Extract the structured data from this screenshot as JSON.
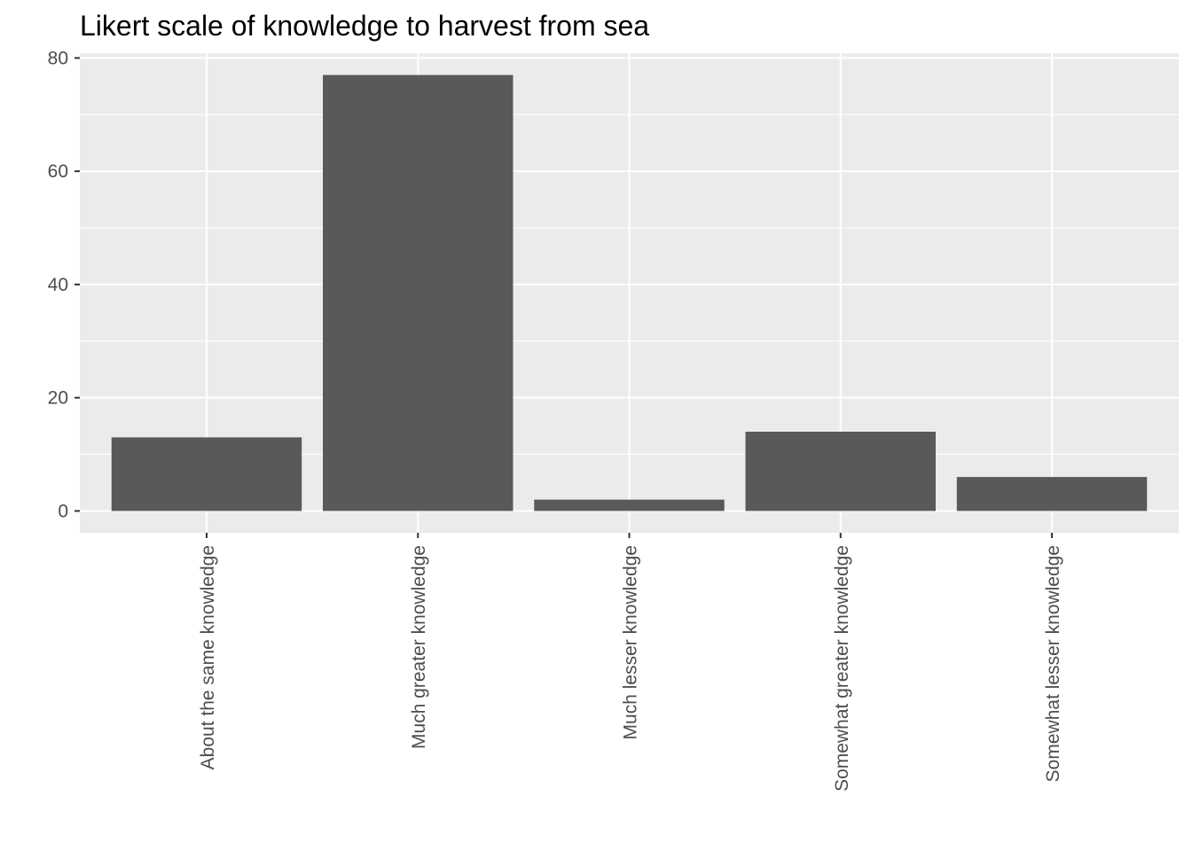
{
  "chart_data": {
    "type": "bar",
    "title": "Likert scale of knowledge to harvest from sea",
    "xlabel": "",
    "ylabel": "",
    "categories": [
      "About the same knowledge",
      "Much greater knowledge",
      "Much lesser knowledge",
      "Somewhat greater knowledge",
      "Somewhat lesser knowledge"
    ],
    "values": [
      13,
      77,
      2,
      14,
      6
    ],
    "ylim": [
      -3.85,
      80.85
    ],
    "yticks": [
      0,
      20,
      40,
      60,
      80
    ],
    "ytick_labels": [
      "0",
      "20",
      "40",
      "60",
      "80"
    ],
    "grid": true,
    "legend": "none",
    "colors": {
      "bar": "#595959",
      "panel": "#ebebeb",
      "grid_major": "#ffffff",
      "axis_text": "#4d4d4d",
      "title": "#000000"
    }
  }
}
